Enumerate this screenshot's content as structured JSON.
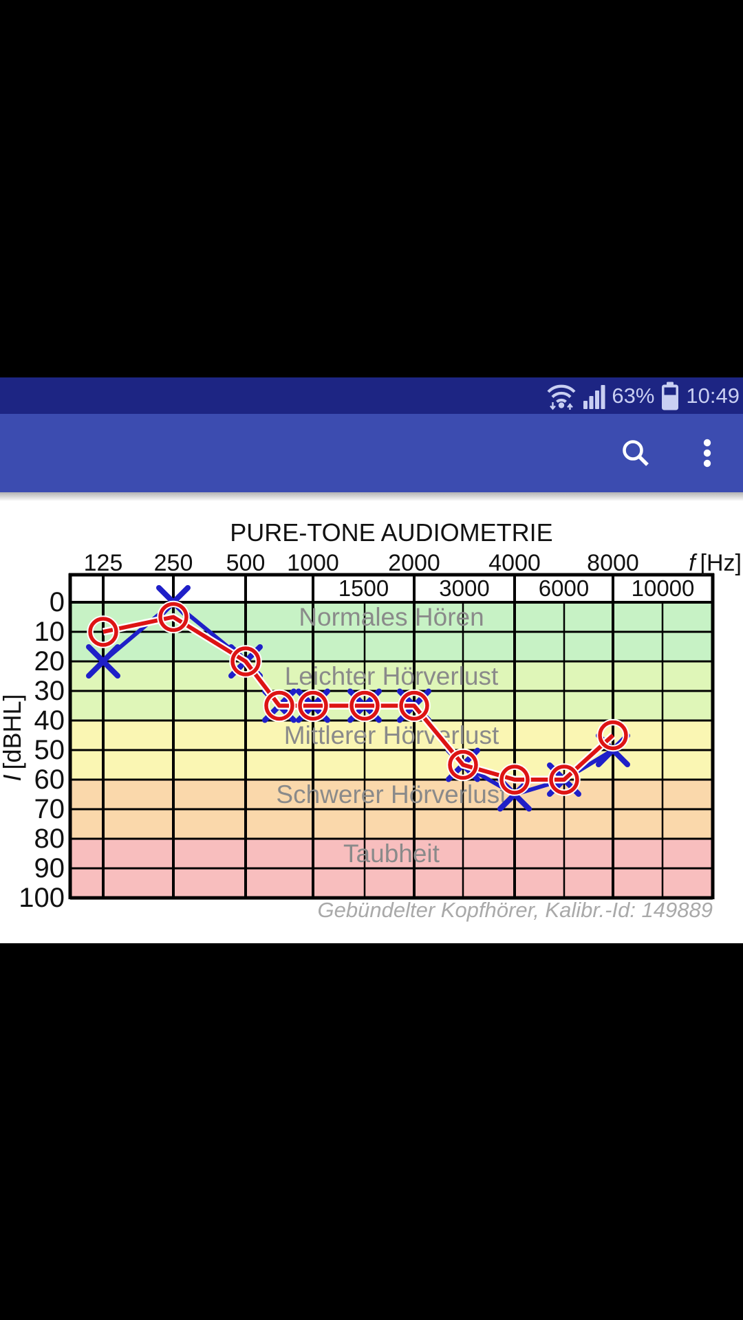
{
  "colors": {
    "status_bar_bg": "#1d2583",
    "app_bar_bg": "#3c4cb0",
    "status_fg": "#c9cff2",
    "app_bar_icon": "#ffffff",
    "content_bg": "#ffffff",
    "grid_ink": "#000000",
    "zone_label_ink": "#8a8a8a",
    "caption_ink": "#a9a9a9"
  },
  "status_bar": {
    "icons": [
      "wifi-icon",
      "signal-strength-icon",
      "battery-icon"
    ],
    "battery_percent": "63%",
    "time": "10:49"
  },
  "app_bar": {
    "buttons": [
      "search-button",
      "overflow-menu-button"
    ]
  },
  "chart_data": {
    "type": "line",
    "title": "PURE-TONE AUDIOMETRIE",
    "x_axis_title": {
      "symbol": "f",
      "unit": "[Hz]"
    },
    "y_axis_title": {
      "symbol": "I",
      "unit": "[dBHL]"
    },
    "x_major_ticks": [
      125,
      250,
      500,
      1000,
      2000,
      4000,
      8000
    ],
    "x_minor_ticks": [
      1500,
      3000,
      6000,
      10000
    ],
    "x_range": [
      100,
      12000
    ],
    "y_ticks": [
      0,
      10,
      20,
      30,
      40,
      50,
      60,
      70,
      80,
      90,
      100
    ],
    "y_range": [
      0,
      100
    ],
    "grid": true,
    "zones": [
      {
        "label": "Normales Hören",
        "from": 0,
        "to": 20,
        "color": "#c7f2c5"
      },
      {
        "label": "Leichter Hörverlust",
        "from": 20,
        "to": 40,
        "color": "#dff6b8"
      },
      {
        "label": "Mittlerer Hörverlust",
        "from": 40,
        "to": 60,
        "color": "#faf6b3"
      },
      {
        "label": "Schwerer Hörverlust",
        "from": 60,
        "to": 80,
        "color": "#fad8ab"
      },
      {
        "label": "Taubheit",
        "from": 80,
        "to": 100,
        "color": "#f8bebe"
      }
    ],
    "series": [
      {
        "id": "right-ear",
        "marker": "circle",
        "color": "#dd1414",
        "points": [
          [
            125,
            10
          ],
          [
            250,
            5
          ],
          [
            500,
            20
          ],
          [
            750,
            35
          ],
          [
            1000,
            35
          ],
          [
            1500,
            35
          ],
          [
            2000,
            35
          ],
          [
            3000,
            55
          ],
          [
            4000,
            60
          ],
          [
            6000,
            60
          ],
          [
            8000,
            45
          ]
        ]
      },
      {
        "id": "left-ear",
        "marker": "x",
        "color": "#1f1fc8",
        "points": [
          [
            125,
            20
          ],
          [
            250,
            0
          ],
          [
            500,
            20
          ],
          [
            750,
            35
          ],
          [
            1000,
            35
          ],
          [
            1500,
            35
          ],
          [
            2000,
            35
          ],
          [
            3000,
            55
          ],
          [
            4000,
            65
          ],
          [
            6000,
            60
          ],
          [
            8000,
            50
          ]
        ]
      }
    ],
    "caption": "Gebündelter Kopfhörer, Kalibr.-Id: 149889"
  }
}
